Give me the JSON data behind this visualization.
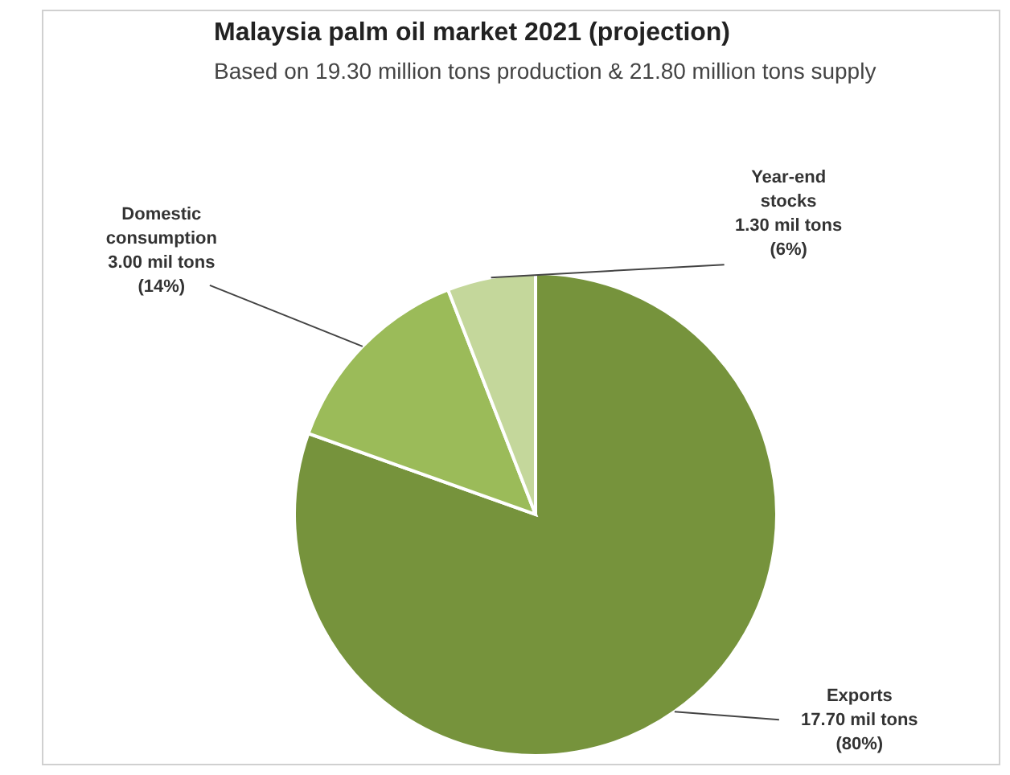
{
  "chart_data": {
    "type": "pie",
    "title": "Malaysia palm oil market 2021 (projection)",
    "subtitle": "Based on 19.30 million tons production & 21.80 million tons supply",
    "categories": [
      "Exports",
      "Domestic consumption",
      "Year-end stocks"
    ],
    "values": [
      17.7,
      3.0,
      1.3
    ],
    "colors": [
      "#76933c",
      "#9bbb59",
      "#c4d79b"
    ],
    "value_labels": [
      "17.70 mil tons (80%)",
      "3.00 mil tons (14%)",
      "1.30 mil tons (6%)"
    ],
    "legend": false
  }
}
